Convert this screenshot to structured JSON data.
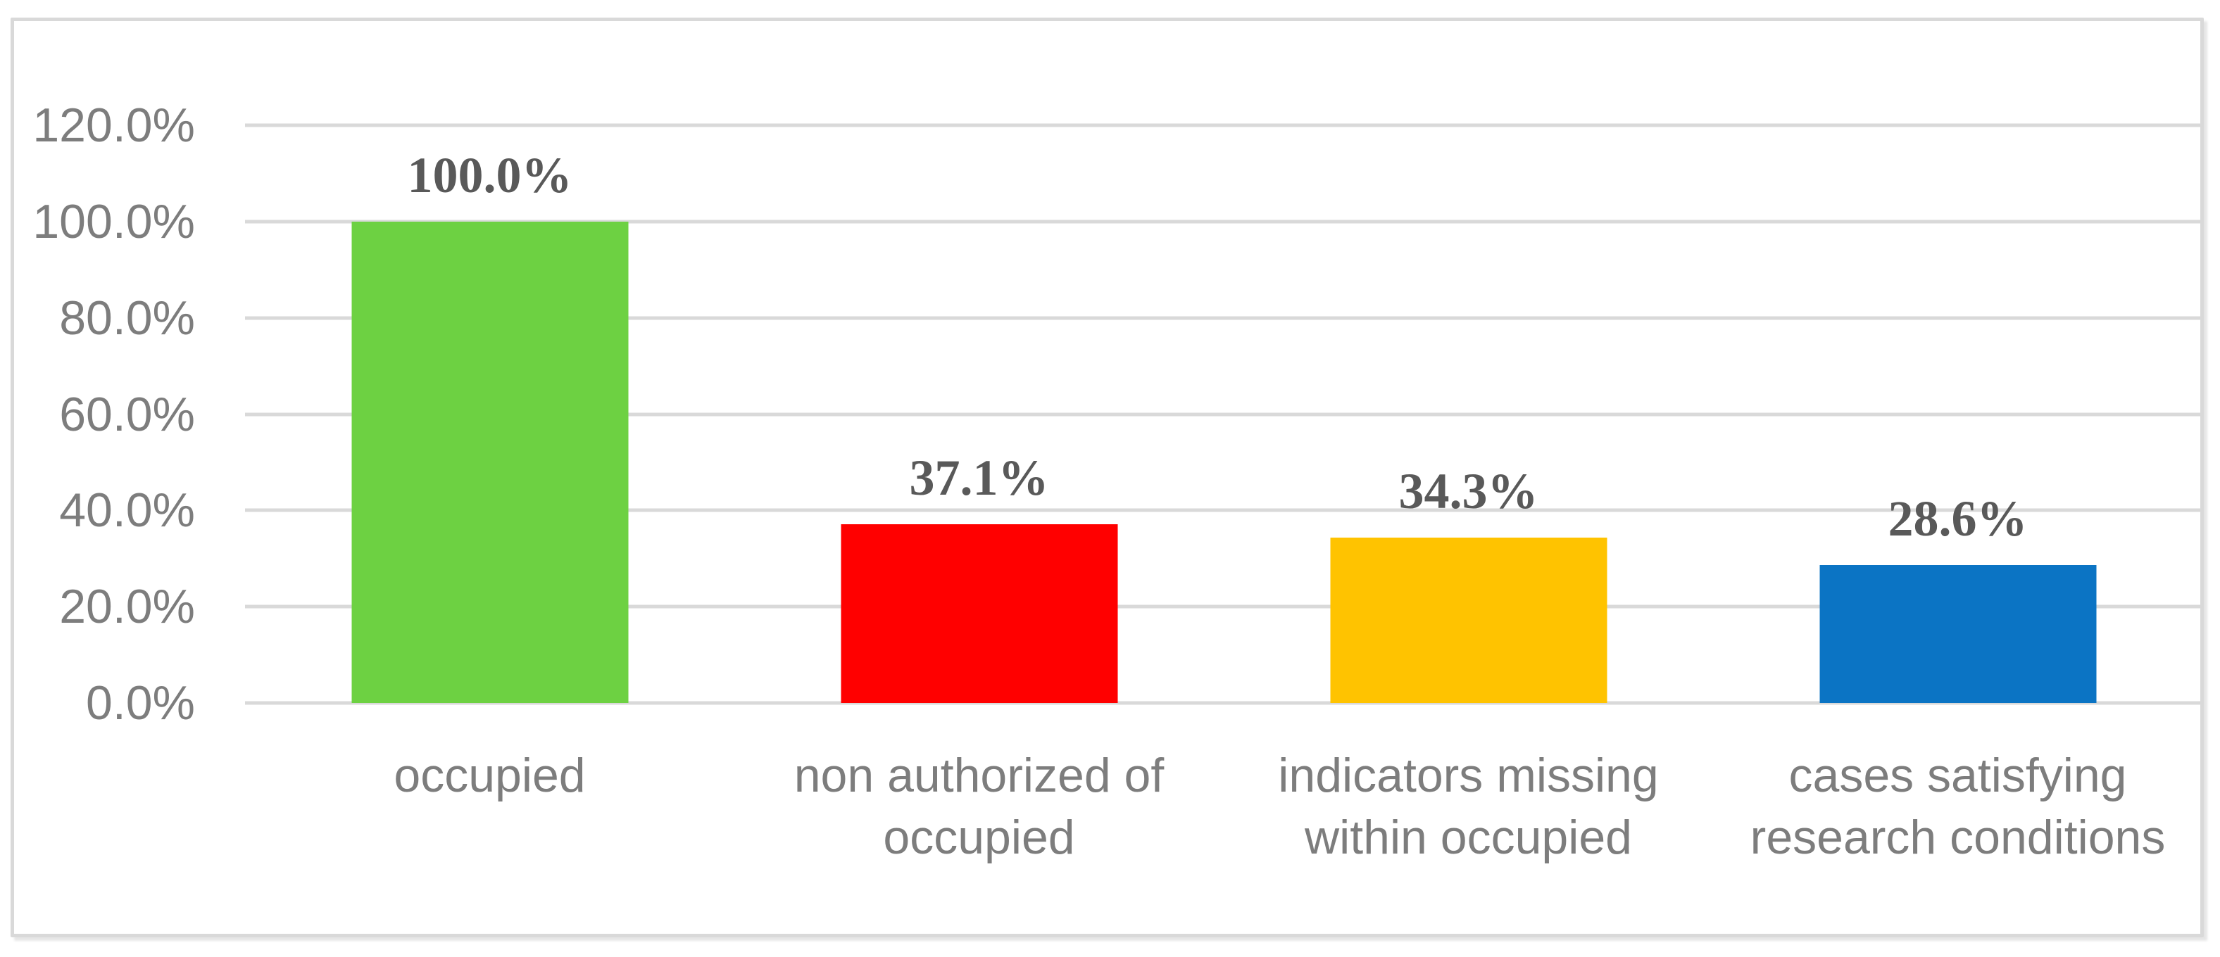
{
  "chart_data": {
    "type": "bar",
    "title": "",
    "xlabel": "",
    "ylabel": "",
    "categories": [
      "occupied",
      "non authorized of occupied",
      "indicators missing within occupied",
      "cases satisfying research conditions"
    ],
    "category_lines": [
      [
        "occupied"
      ],
      [
        "non authorized of",
        "occupied"
      ],
      [
        "indicators missing",
        "within occupied"
      ],
      [
        "cases satisfying",
        "research conditions"
      ]
    ],
    "values": [
      100.0,
      37.1,
      34.3,
      28.6
    ],
    "value_labels": [
      "100.0%",
      "37.1%",
      "34.3%",
      "28.6%"
    ],
    "bar_colors": [
      "#6dd142",
      "#ff0000",
      "#ffc300",
      "#0b74c4"
    ],
    "ylim": [
      0,
      120
    ],
    "y_tick_step": 20,
    "y_tick_labels": [
      "0.0%",
      "20.0%",
      "40.0%",
      "60.0%",
      "80.0%",
      "100.0%",
      "120.0%"
    ],
    "grid": "horizontal",
    "legend": "none",
    "styles": {
      "background": "#ffffff",
      "frame_color": "#d9d9d9",
      "grid_color": "#d9d9d9",
      "axis_text_color": "#7d7d7d",
      "data_label_color": "#595959"
    }
  }
}
